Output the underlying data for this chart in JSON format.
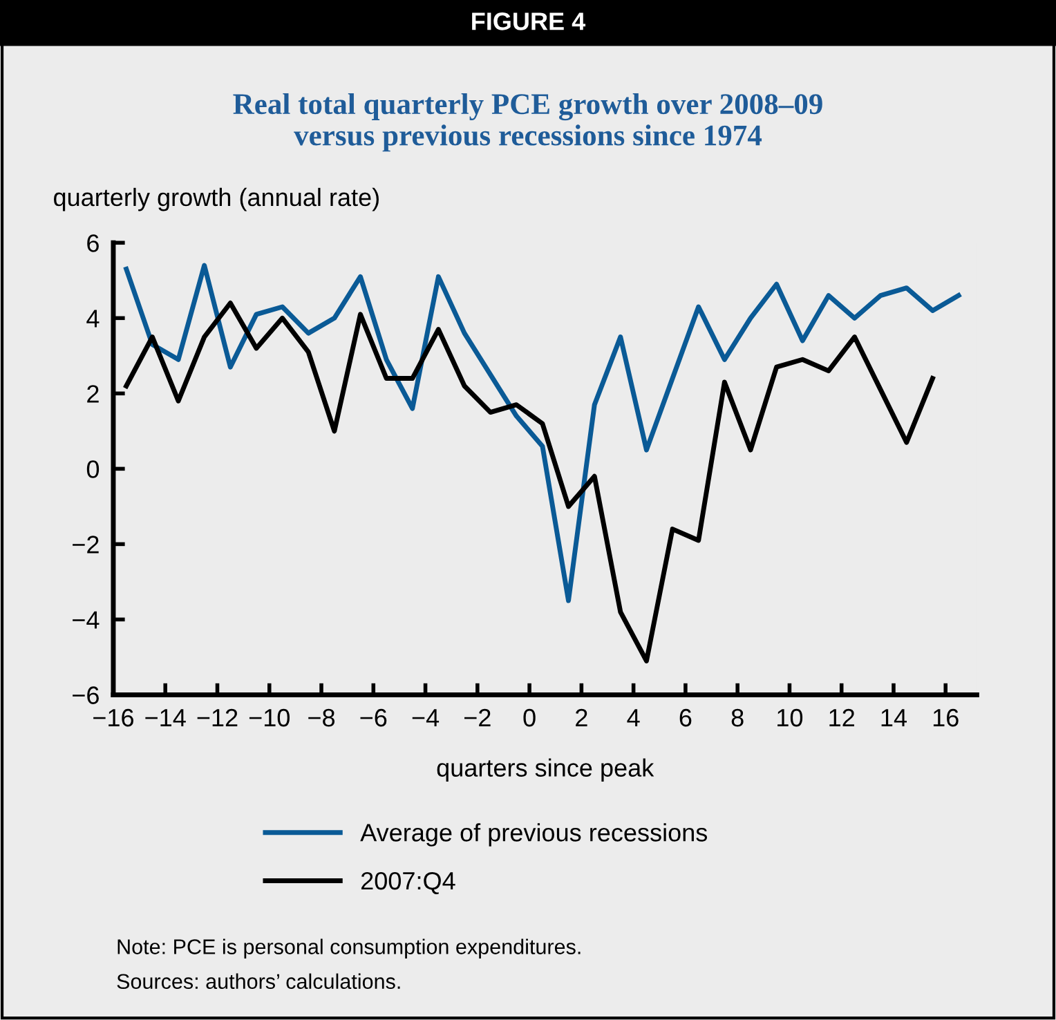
{
  "chart_data": {
    "type": "line",
    "subtitle": "FIGURE 4",
    "title": "Real total quarterly PCE growth over 2008–09\nversus previous recessions since 1974",
    "ylabel": "quarterly growth (annual rate)",
    "xlabel": "quarters since peak",
    "x": [
      -15.5,
      -14.5,
      -13.5,
      -12.5,
      -11.5,
      -10.5,
      -9.5,
      -8.5,
      -7.5,
      -6.5,
      -5.5,
      -4.5,
      -3.5,
      -2.5,
      -1.5,
      -0.5,
      0.5,
      1.5,
      2.5,
      3.5,
      4.5,
      5.5,
      6.5,
      7.5,
      8.5,
      9.5,
      10.5,
      11.5,
      12.5,
      13.5,
      14.5,
      15.5,
      16.5
    ],
    "series": [
      {
        "name": "Average of previous recessions",
        "color": "#0a5a96",
        "values": [
          5.3,
          3.3,
          2.9,
          5.4,
          2.7,
          4.1,
          4.3,
          3.6,
          4.0,
          5.1,
          2.9,
          1.6,
          5.1,
          3.6,
          2.5,
          1.4,
          0.6,
          -3.5,
          1.7,
          3.5,
          0.5,
          2.4,
          4.3,
          2.9,
          4.0,
          4.9,
          3.4,
          4.6,
          4.0,
          4.6,
          4.8,
          4.2,
          4.6
        ]
      },
      {
        "name": "2007:Q4",
        "color": "#000000",
        "values": [
          2.2,
          3.5,
          1.8,
          3.5,
          4.4,
          3.2,
          4.0,
          3.1,
          1.0,
          4.1,
          2.4,
          2.4,
          3.7,
          2.2,
          1.5,
          1.7,
          1.2,
          -1.0,
          -0.2,
          -3.8,
          -5.1,
          -1.6,
          -1.9,
          2.3,
          0.5,
          2.7,
          2.9,
          2.6,
          3.5,
          2.1,
          0.7,
          2.4,
          null
        ]
      }
    ],
    "xlim": [
      -16,
      17.2
    ],
    "xticks": [
      {
        "value": -16,
        "label": "−16"
      },
      {
        "value": -14,
        "label": "−14"
      },
      {
        "value": -12,
        "label": "−12"
      },
      {
        "value": -10,
        "label": "−10"
      },
      {
        "value": -8,
        "label": "−8"
      },
      {
        "value": -6,
        "label": "−6"
      },
      {
        "value": -4,
        "label": "−4"
      },
      {
        "value": -2,
        "label": "−2"
      },
      0,
      2,
      4,
      6,
      8,
      10,
      12,
      14,
      16
    ],
    "ylim": [
      -6,
      6
    ],
    "yticks": [
      {
        "value": -6,
        "label": "−6"
      },
      {
        "value": -4,
        "label": "−4"
      },
      {
        "value": -2,
        "label": "−2"
      },
      0,
      2,
      4,
      6
    ],
    "grid": false,
    "legend": "bottom",
    "marker": "none",
    "line_style": "solid",
    "annotations": [
      "Note: PCE is personal consumption expenditures.",
      "Sources: authors’ calculations."
    ]
  }
}
